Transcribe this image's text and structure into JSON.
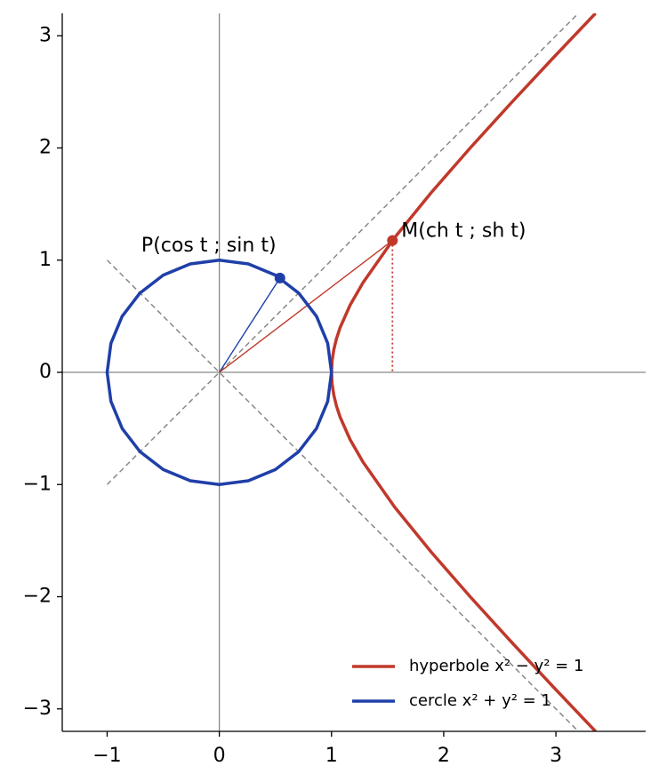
{
  "chart_data": {
    "type": "parametric",
    "xlim": [
      -1.4,
      3.8
    ],
    "ylim": [
      -3.2,
      3.2
    ],
    "xticks": [
      {
        "value": -1,
        "label": "−1"
      },
      0,
      1,
      2,
      3
    ],
    "yticks": [
      {
        "value": -3,
        "label": "−3"
      },
      {
        "value": -2,
        "label": "−2"
      },
      {
        "value": -1,
        "label": "−1"
      },
      0,
      1,
      2,
      3
    ],
    "series": [
      {
        "name": "hyperbole x² − y² = 1",
        "color": "#c0392b",
        "x": [
          3.353,
          2.973,
          2.6,
          2.236,
          1.887,
          1.562,
          1.281,
          1.166,
          1.077,
          1.044,
          1.02,
          1.005,
          1,
          1.005,
          1.02,
          1.044,
          1.077,
          1.166,
          1.281,
          1.562,
          1.887,
          2.236,
          2.6,
          2.973,
          3.353
        ],
        "y": [
          -3.2,
          -2.8,
          -2.4,
          -2.0,
          -1.6,
          -1.2,
          -0.8,
          -0.6,
          -0.4,
          -0.3,
          -0.2,
          -0.1,
          0,
          0.1,
          0.2,
          0.3,
          0.4,
          0.6,
          0.8,
          1.2,
          1.6,
          2.0,
          2.4,
          2.8,
          3.2
        ]
      },
      {
        "name": "cercle x² + y² = 1",
        "color": "#1f3fa8",
        "x": [
          1,
          0.966,
          0.866,
          0.707,
          0.5,
          0.259,
          0,
          -0.259,
          -0.5,
          -0.707,
          -0.866,
          -0.966,
          -1,
          -0.966,
          -0.866,
          -0.707,
          -0.5,
          -0.259,
          0,
          0.259,
          0.5,
          0.707,
          0.866,
          0.966,
          1
        ],
        "y": [
          0,
          0.259,
          0.5,
          0.707,
          0.866,
          0.966,
          1,
          0.966,
          0.866,
          0.707,
          0.5,
          0.259,
          0,
          -0.259,
          -0.5,
          -0.707,
          -0.866,
          -0.966,
          -1,
          -0.966,
          -0.866,
          -0.707,
          -0.5,
          -0.259,
          0
        ]
      }
    ],
    "asymptotes": [
      {
        "x": [
          -1,
          3.2
        ],
        "y": [
          -1,
          3.2
        ]
      },
      {
        "x": [
          -1,
          3.2
        ],
        "y": [
          1,
          -3.2
        ]
      }
    ],
    "points": [
      {
        "label": "P(cos t ; sin t)",
        "x": 0.54,
        "y": 0.841,
        "color": "#1f3fa8"
      },
      {
        "label": "M(ch t ; sh t)",
        "x": 1.543,
        "y": 1.175,
        "color": "#c0392b"
      }
    ],
    "legend": "lower right"
  }
}
